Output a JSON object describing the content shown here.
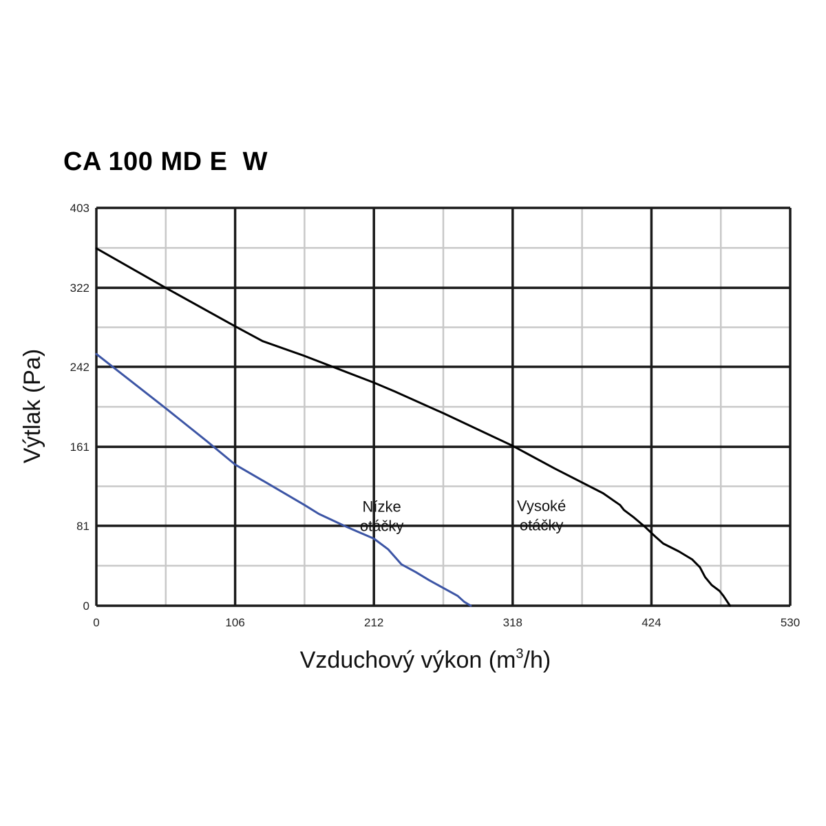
{
  "chart_data": {
    "type": "line",
    "title": "CA 100 MD E  W",
    "xlabel": "Vzduchový výkon (m³/h)",
    "xlabel_parts": {
      "main": "Vzduchový výkon (m",
      "sup": "3",
      "tail": "/h)"
    },
    "ylabel": "Výtlak (Pa)",
    "xlim": [
      0,
      530
    ],
    "ylim": [
      0,
      403
    ],
    "x_ticks": [
      0,
      106,
      212,
      318,
      424,
      530
    ],
    "y_ticks": [
      0,
      81,
      161,
      242,
      322,
      403
    ],
    "grid": true,
    "colors": {
      "major_grid": "#1a1a1a",
      "minor_grid": "#c8c8c8",
      "high_speed": "#000000",
      "low_speed": "#3c55a5"
    },
    "series": [
      {
        "name": "Vysoké otáčky",
        "label_lines": [
          "Vysoké",
          "otáčky"
        ],
        "color_key": "high_speed",
        "label_anchor": {
          "x": 340,
          "y": 96
        },
        "points": [
          [
            0,
            362
          ],
          [
            53,
            322
          ],
          [
            106,
            283
          ],
          [
            127,
            268
          ],
          [
            159,
            253
          ],
          [
            212,
            226
          ],
          [
            228,
            217
          ],
          [
            265,
            195
          ],
          [
            318,
            162
          ],
          [
            350,
            139
          ],
          [
            387,
            114
          ],
          [
            400,
            102
          ],
          [
            403,
            97
          ],
          [
            410,
            90
          ],
          [
            419,
            80
          ],
          [
            427,
            70
          ],
          [
            433,
            63
          ],
          [
            445,
            55
          ],
          [
            455,
            47
          ],
          [
            461,
            39
          ],
          [
            465,
            29
          ],
          [
            470,
            21
          ],
          [
            476,
            15
          ],
          [
            479,
            10
          ],
          [
            484,
            0
          ]
        ]
      },
      {
        "name": "Nízke otáčky",
        "label_lines": [
          "Nízke",
          "otáčky"
        ],
        "color_key": "low_speed",
        "label_anchor": {
          "x": 218,
          "y": 95
        },
        "points": [
          [
            0,
            255
          ],
          [
            53,
            200
          ],
          [
            85,
            166
          ],
          [
            106,
            143
          ],
          [
            132,
            123
          ],
          [
            159,
            102
          ],
          [
            170,
            93
          ],
          [
            191,
            80
          ],
          [
            212,
            68
          ],
          [
            223,
            57
          ],
          [
            233,
            42
          ],
          [
            244,
            34
          ],
          [
            254,
            26
          ],
          [
            265,
            18
          ],
          [
            276,
            10
          ],
          [
            281,
            4
          ],
          [
            286,
            0
          ]
        ]
      }
    ]
  }
}
